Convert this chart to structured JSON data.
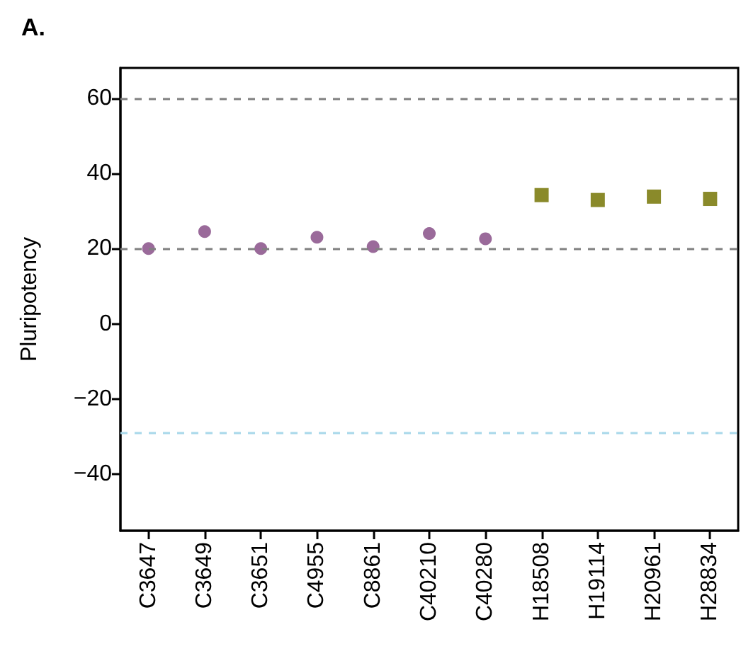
{
  "chart_data": {
    "type": "scatter",
    "title": "A.",
    "ylabel": "Pluripotency",
    "categories": [
      "C3647",
      "C3649",
      "C3651",
      "C4955",
      "C8861",
      "C40210",
      "C40280",
      "H18508",
      "H19114",
      "H20961",
      "H28834"
    ],
    "series": [
      {
        "color": "#9a6a9a",
        "marker": "circle",
        "values": [
          20,
          24.5,
          20,
          23,
          20.5,
          24,
          22.6,
          null,
          null,
          null,
          null
        ]
      },
      {
        "color": "#8a8a2a",
        "marker": "square",
        "values": [
          null,
          null,
          null,
          null,
          null,
          null,
          null,
          34.2,
          32.9,
          33.8,
          33.2
        ]
      }
    ],
    "ylim": [
      -55,
      68
    ],
    "yticks": [
      {
        "value": -40,
        "label": "−40"
      },
      {
        "value": -20,
        "label": "−20"
      },
      0,
      20,
      40,
      60
    ],
    "ref_lines": [
      {
        "axis": "y",
        "value": 60,
        "color": "#808080",
        "line_style": "dashed"
      },
      {
        "axis": "y",
        "value": 20,
        "color": "#808080",
        "line_style": "dashed"
      },
      {
        "axis": "y",
        "value": -29,
        "color": "#a8d8ea",
        "line_style": "dashed"
      }
    ],
    "grid": false
  }
}
